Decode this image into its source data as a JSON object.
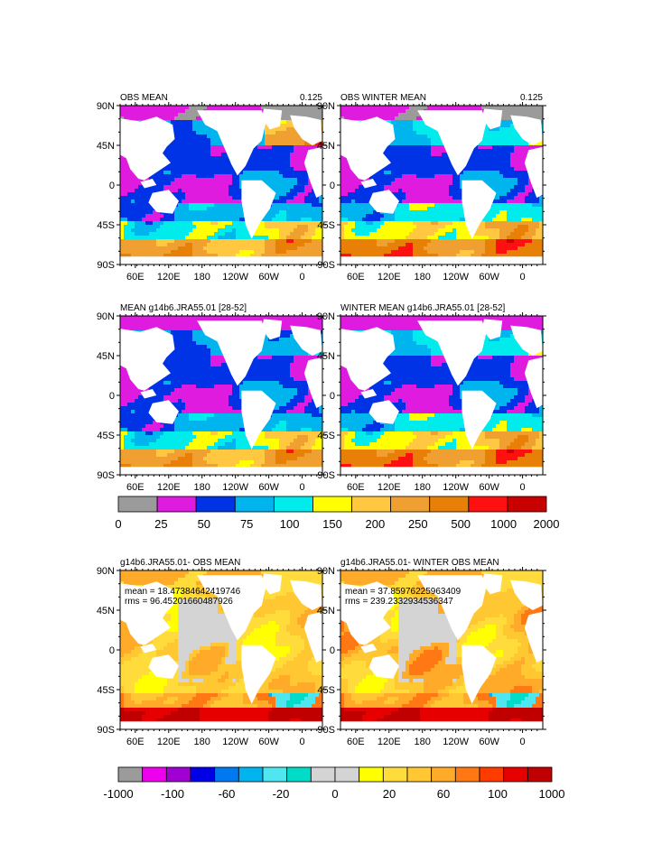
{
  "panels": [
    {
      "title": "OBS MEAN",
      "value": "0.125",
      "pattern": "obs",
      "map": "mean"
    },
    {
      "title": "OBS WINTER MEAN",
      "value": "0.125",
      "pattern": "obsw",
      "map": "mean"
    },
    {
      "title": "MEAN g14b6.JRA55.01 [28-52]",
      "value": "",
      "pattern": "mod",
      "map": "mean"
    },
    {
      "title": "WINTER MEAN g14b6.JRA55.01 [28-52]",
      "value": "",
      "pattern": "modw",
      "map": "mean"
    },
    {
      "title": "g14b6.JRA55.01- OBS MEAN",
      "value": "",
      "pattern": "diff",
      "map": "diff",
      "stats": [
        "mean = 18.47384642419746",
        "rms = 96.45201660487926"
      ]
    },
    {
      "title": "g14b6.JRA55.01- WINTER OBS MEAN",
      "value": "",
      "pattern": "diffw",
      "map": "diff",
      "stats": [
        "mean = 37.85976225963409",
        "rms = 239.2332934536347"
      ]
    }
  ],
  "axes": {
    "lat_labels": [
      "90N",
      "45N",
      "0",
      "45S",
      "90S"
    ],
    "lon_labels": [
      "60E",
      "120E",
      "180",
      "120W",
      "60W",
      "0"
    ]
  },
  "colorbar_mean": {
    "labels": [
      "0",
      "25",
      "50",
      "75",
      "100",
      "150",
      "200",
      "250",
      "500",
      "1000",
      "2000"
    ],
    "colors": [
      "#9b9b9b",
      "#e01be0",
      "#0032e6",
      "#00b4ee",
      "#00ebeb",
      "#ffff00",
      "#ffc840",
      "#f0a030",
      "#e88008",
      "#ff1010",
      "#c80000"
    ]
  },
  "colorbar_diff": {
    "labels": [
      "-1000",
      "-100",
      "-60",
      "-20",
      "0",
      "20",
      "60",
      "100",
      "1000"
    ],
    "colors": [
      "#9b9b9b",
      "#ee00ee",
      "#a000d2",
      "#0000e6",
      "#0078f0",
      "#00b4f0",
      "#50e6f0",
      "#00dcc8",
      "#d4d4d4",
      "#d4d4d4",
      "#ffff00",
      "#ffdc3c",
      "#ffc832",
      "#ffaa28",
      "#ff7814",
      "#ff3c00",
      "#e60000",
      "#c00000"
    ]
  }
}
